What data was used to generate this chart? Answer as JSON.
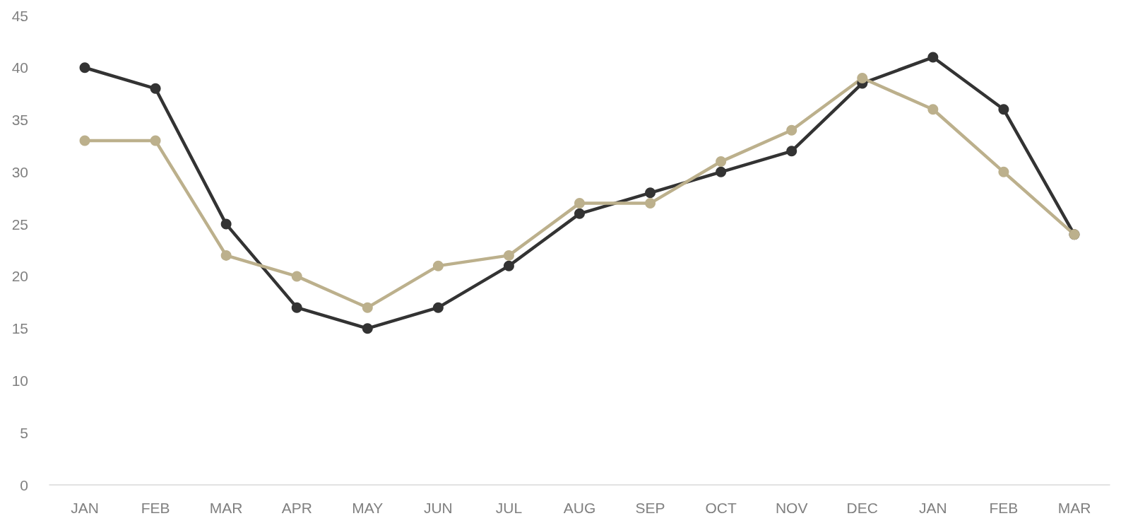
{
  "chart_data": {
    "type": "line",
    "categories": [
      "JAN",
      "FEB",
      "MAR",
      "APR",
      "MAY",
      "JUN",
      "JUL",
      "AUG",
      "SEP",
      "OCT",
      "NOV",
      "DEC",
      "JAN",
      "FEB",
      "MAR"
    ],
    "series": [
      {
        "color": "#333333",
        "values": [
          40,
          38,
          25,
          17,
          15,
          17,
          21,
          26,
          28,
          30,
          32,
          38.5,
          41,
          36,
          24
        ]
      },
      {
        "color": "#bcb08c",
        "values": [
          33,
          33,
          22,
          20,
          17,
          21,
          22,
          27,
          27,
          31,
          34,
          39,
          36,
          30,
          24
        ]
      }
    ],
    "ylim": [
      0,
      45
    ],
    "yticks": [
      0,
      5,
      10,
      15,
      20,
      25,
      30,
      35,
      40,
      45
    ],
    "grid": false,
    "marker": "circle",
    "line_style": "solid"
  }
}
